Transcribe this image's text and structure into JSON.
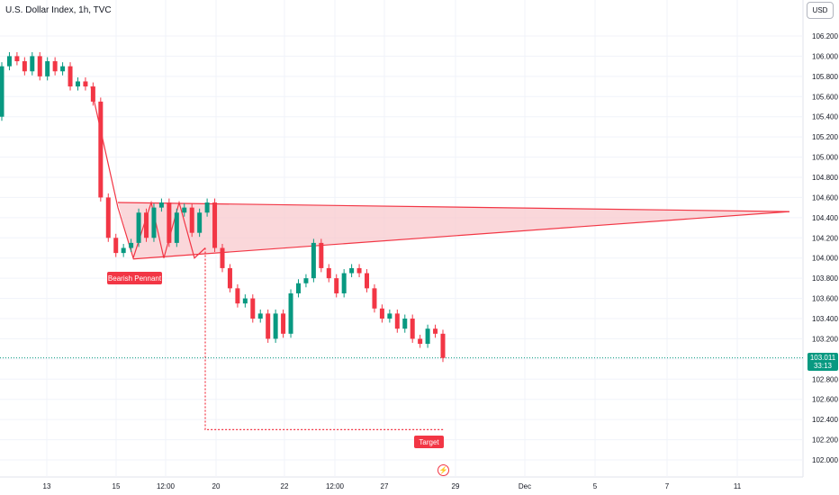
{
  "header": {
    "title": "U.S. Dollar Index, 1h, TVC",
    "currency_button": "USD"
  },
  "price_tag": {
    "price": "103.011",
    "countdown": "33:13"
  },
  "annotations": {
    "pattern_label": "Bearish Pennant",
    "target_label": "Target"
  },
  "icons": {
    "events": "lightning-icon"
  },
  "colors": {
    "up": "#089981",
    "down": "#f23645",
    "pattern_fill": "#f8c9cd",
    "pattern_line": "#f23645",
    "grid": "#f0f3fa",
    "axis_text": "#131722"
  },
  "chart_data": {
    "type": "candlestick",
    "title": "U.S. Dollar Index, 1h, TVC",
    "xlabel": "",
    "ylabel": "",
    "y_ticks": [
      "106.200",
      "106.000",
      "105.800",
      "105.600",
      "105.400",
      "105.200",
      "105.000",
      "104.800",
      "104.600",
      "104.400",
      "104.200",
      "104.000",
      "103.800",
      "103.600",
      "103.400",
      "103.200",
      "103.000",
      "102.800",
      "102.600",
      "102.400",
      "102.200",
      "102.000"
    ],
    "ylim": [
      101.95,
      106.45
    ],
    "x_ticks": [
      "13",
      "15",
      "12:00",
      "20",
      "22",
      "12:00",
      "27",
      "29",
      "Dec",
      "5",
      "7",
      "11"
    ],
    "grid": true,
    "last_price": 103.011,
    "series": [
      {
        "values": [
          [
            105.4,
            105.9
          ],
          [
            105.9,
            106.0
          ],
          [
            106.0,
            105.95
          ],
          [
            105.95,
            105.85
          ],
          [
            105.85,
            106.0
          ],
          [
            106.0,
            105.8
          ],
          [
            105.8,
            105.95
          ],
          [
            105.95,
            105.85
          ],
          [
            105.85,
            105.9
          ],
          [
            105.9,
            105.7
          ],
          [
            105.7,
            105.75
          ],
          [
            105.75,
            105.7
          ],
          [
            105.7,
            105.55
          ],
          [
            105.55,
            104.6
          ],
          [
            104.6,
            104.2
          ],
          [
            104.2,
            104.05
          ],
          [
            104.05,
            104.1
          ],
          [
            104.1,
            104.15
          ],
          [
            104.15,
            104.45
          ],
          [
            104.45,
            104.2
          ],
          [
            104.2,
            104.5
          ],
          [
            104.5,
            104.55
          ],
          [
            104.55,
            104.15
          ],
          [
            104.15,
            104.45
          ],
          [
            104.45,
            104.5
          ],
          [
            104.5,
            104.25
          ],
          [
            104.25,
            104.45
          ],
          [
            104.45,
            104.55
          ],
          [
            104.55,
            104.1
          ],
          [
            104.1,
            103.9
          ],
          [
            103.9,
            103.7
          ],
          [
            103.7,
            103.55
          ],
          [
            103.55,
            103.6
          ],
          [
            103.6,
            103.4
          ],
          [
            103.4,
            103.45
          ],
          [
            103.45,
            103.2
          ],
          [
            103.2,
            103.45
          ],
          [
            103.45,
            103.25
          ],
          [
            103.25,
            103.65
          ],
          [
            103.65,
            103.75
          ],
          [
            103.75,
            103.8
          ],
          [
            103.8,
            104.15
          ],
          [
            104.15,
            103.9
          ],
          [
            103.9,
            103.8
          ],
          [
            103.8,
            103.65
          ],
          [
            103.65,
            103.85
          ],
          [
            103.85,
            103.9
          ],
          [
            103.9,
            103.85
          ],
          [
            103.85,
            103.7
          ],
          [
            103.7,
            103.5
          ],
          [
            103.5,
            103.4
          ],
          [
            103.4,
            103.45
          ],
          [
            103.45,
            103.3
          ],
          [
            103.3,
            103.4
          ],
          [
            103.4,
            103.2
          ],
          [
            103.2,
            103.15
          ],
          [
            103.15,
            103.3
          ],
          [
            103.3,
            103.25
          ],
          [
            103.25,
            103.01
          ]
        ]
      }
    ],
    "pattern": {
      "name": "Bearish Pennant",
      "upper_line": [
        104.55,
        104.46
      ],
      "lower_line": [
        104.0,
        104.46
      ],
      "target": 102.3
    }
  }
}
